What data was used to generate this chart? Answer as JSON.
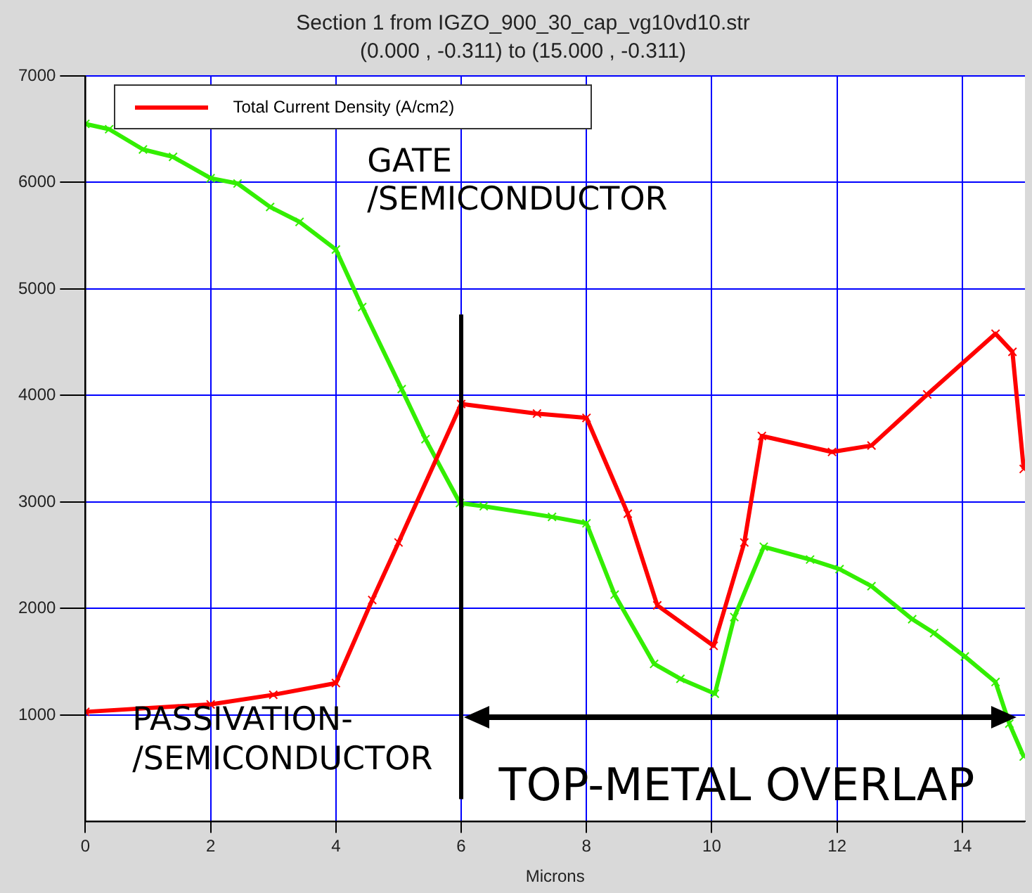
{
  "chart_data": {
    "type": "line",
    "title": "Section 1 from IGZO_900_30_cap_vg10vd10.str",
    "subtitle": "(0.000 , -0.311) to (15.000 , -0.311)",
    "xlabel": "Microns",
    "xlim": [
      0,
      15
    ],
    "xticks": [
      0,
      2,
      4,
      6,
      8,
      10,
      12,
      14
    ],
    "ylim": [
      0,
      7000
    ],
    "yticks": [
      1000,
      2000,
      3000,
      4000,
      5000,
      6000,
      7000
    ],
    "grid": true,
    "legend": "top left",
    "marker": "cross",
    "line_style": "solid",
    "series": [
      {
        "name": "Total Current Density (A/cm2)",
        "color": "#ff0000",
        "x": [
          0,
          2,
          3,
          4,
          4.58,
          5,
          6,
          7.21,
          8,
          8.66,
          9.13,
          10.03,
          10.52,
          10.8,
          11.92,
          12.55,
          13.44,
          14.53,
          14.8,
          14.98
        ],
        "values": [
          1030,
          1100,
          1190,
          1300,
          2080,
          2620,
          3920,
          3830,
          3790,
          2890,
          2030,
          1650,
          2620,
          3620,
          3470,
          3530,
          4010,
          4580,
          4410,
          3310
        ]
      },
      {
        "color": "#33ee00",
        "x": [
          0,
          0.38,
          0.92,
          1.4,
          2,
          2.43,
          2.95,
          3.42,
          4,
          4.42,
          5.05,
          5.43,
          5.98,
          6.36,
          7.45,
          8,
          8.45,
          9.08,
          9.5,
          10.05,
          10.36,
          10.83,
          11.57,
          12.04,
          12.55,
          13.2,
          13.55,
          14.04,
          14.53,
          14.75,
          14.98
        ],
        "values": [
          6550,
          6500,
          6310,
          6240,
          6040,
          5990,
          5770,
          5630,
          5370,
          4830,
          4060,
          3590,
          2990,
          2960,
          2860,
          2800,
          2130,
          1480,
          1340,
          1200,
          1920,
          2580,
          2460,
          2370,
          2210,
          1900,
          1770,
          1550,
          1310,
          920,
          610
        ]
      }
    ],
    "ref_lines": [
      {
        "axis": "x",
        "value": 6,
        "color": "#000000"
      }
    ],
    "annotations": [
      "GATE\n/SEMICONDUCTOR",
      "PASSIVATION-\n/SEMICONDUCTOR",
      "TOP-METAL OVERLAP"
    ]
  }
}
